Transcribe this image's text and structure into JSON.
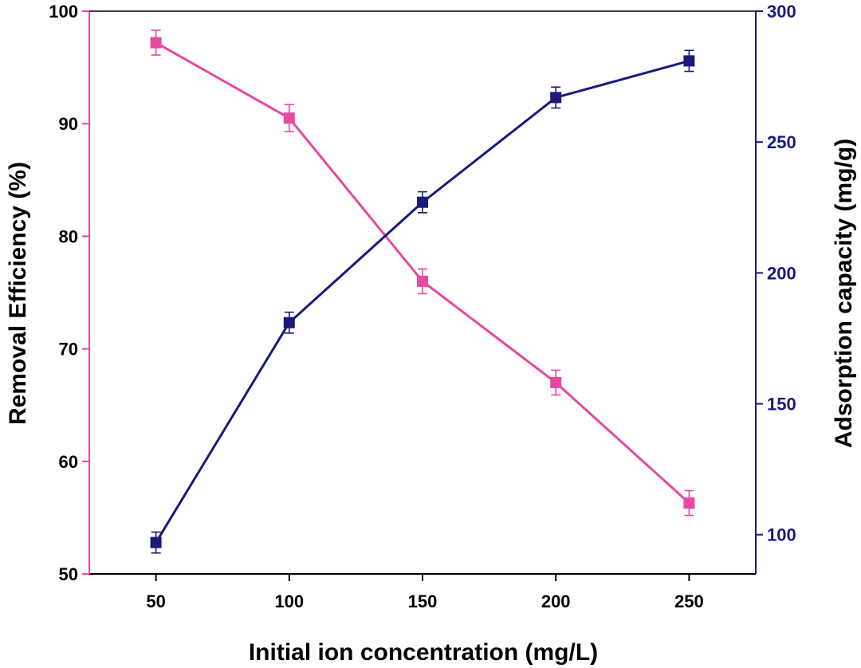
{
  "chart_data": {
    "type": "line",
    "xlabel": "Initial ion concentration (mg/L)",
    "ylabel": "Removal Efficiency (%)",
    "y2label": "Adsorption capacity (mg/g)",
    "xlim": [
      25,
      275
    ],
    "ylim": [
      50,
      100
    ],
    "y2lim": [
      85,
      300
    ],
    "x_ticks": [
      50,
      100,
      150,
      200,
      250
    ],
    "y_ticks": [
      50,
      60,
      70,
      80,
      90,
      100
    ],
    "y2_ticks": [
      100,
      150,
      200,
      250,
      300
    ],
    "colors": {
      "left": "#e8489e",
      "right": "#1a1a7a",
      "axis": "#000000"
    },
    "series": [
      {
        "name": "Removal Efficiency",
        "axis": "left",
        "color": "#e8489e",
        "x": [
          50,
          100,
          150,
          200,
          250
        ],
        "values": [
          97.2,
          90.5,
          76.0,
          67.0,
          56.3
        ],
        "errors": [
          1.1,
          1.2,
          1.1,
          1.1,
          1.1
        ]
      },
      {
        "name": "Adsorption capacity",
        "axis": "right",
        "color": "#1a1a7a",
        "x": [
          50,
          100,
          150,
          200,
          250
        ],
        "values": [
          97,
          181,
          227,
          267,
          281
        ],
        "errors": [
          4,
          4,
          4,
          4,
          4
        ]
      }
    ]
  }
}
